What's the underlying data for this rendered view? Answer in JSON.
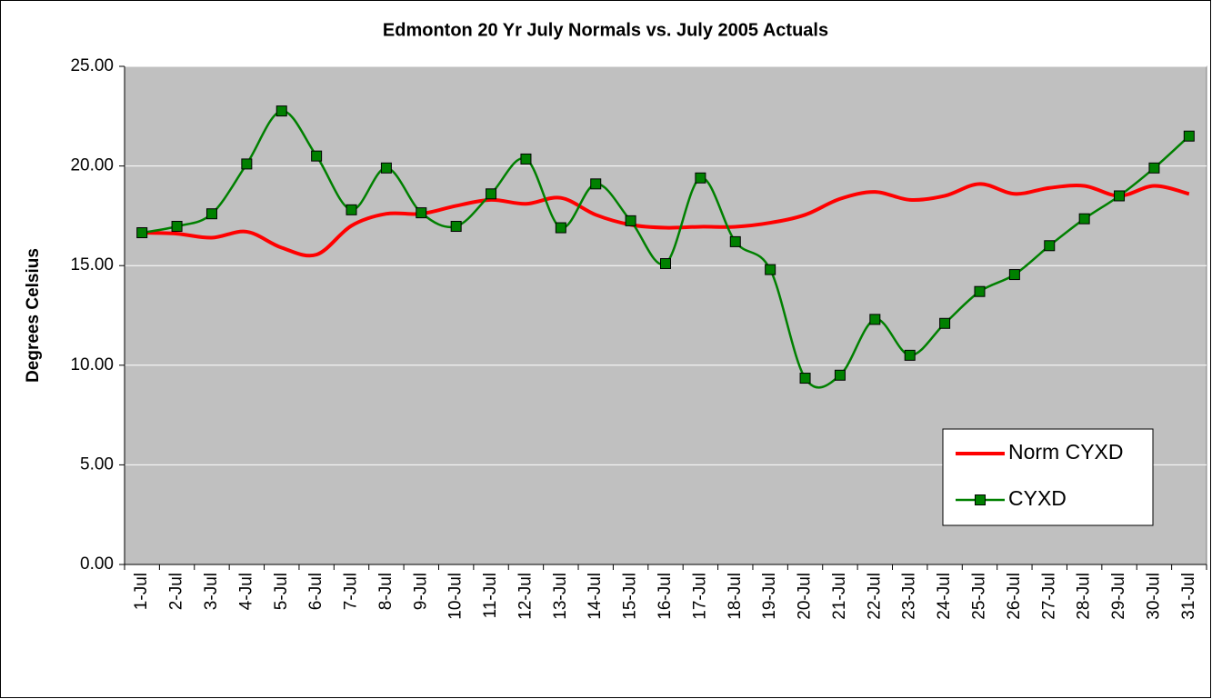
{
  "chart_data": {
    "type": "line",
    "title": "Edmonton 20 Yr July Normals vs. July 2005 Actuals",
    "y_label": "Degrees Celsius",
    "categories": [
      "1-Jul",
      "2-Jul",
      "3-Jul",
      "4-Jul",
      "5-Jul",
      "6-Jul",
      "7-Jul",
      "8-Jul",
      "9-Jul",
      "10-Jul",
      "11-Jul",
      "12-Jul",
      "13-Jul",
      "14-Jul",
      "15-Jul",
      "16-Jul",
      "17-Jul",
      "18-Jul",
      "19-Jul",
      "20-Jul",
      "21-Jul",
      "22-Jul",
      "23-Jul",
      "24-Jul",
      "25-Jul",
      "26-Jul",
      "27-Jul",
      "28-Jul",
      "29-Jul",
      "30-Jul",
      "31-Jul"
    ],
    "series": [
      {
        "name": "Norm CYXD",
        "color": "#ff0000",
        "marker": false,
        "values": [
          16.65,
          16.6,
          16.4,
          16.7,
          15.9,
          15.55,
          17.0,
          17.6,
          17.6,
          18.0,
          18.3,
          18.1,
          18.4,
          17.55,
          17.05,
          16.9,
          16.95,
          16.95,
          17.15,
          17.55,
          18.35,
          18.7,
          18.3,
          18.5,
          19.1,
          18.6,
          18.9,
          19.0,
          18.5,
          19.0,
          18.6
        ]
      },
      {
        "name": "CYXD",
        "color": "#008000",
        "marker": true,
        "values": [
          16.65,
          16.97,
          17.6,
          20.1,
          22.76,
          20.5,
          17.8,
          19.9,
          17.65,
          16.97,
          18.6,
          20.35,
          16.9,
          19.1,
          17.25,
          15.1,
          19.4,
          16.2,
          14.8,
          9.35,
          9.5,
          12.3,
          10.5,
          12.1,
          13.7,
          14.55,
          16.0,
          17.35,
          18.5,
          19.9,
          21.5
        ]
      }
    ],
    "ylim": [
      0,
      25
    ],
    "yticks": [
      {
        "value": 0,
        "label": "0.00"
      },
      {
        "value": 5,
        "label": "5.00"
      },
      {
        "value": 10,
        "label": "10.00"
      },
      {
        "value": 15,
        "label": "15.00"
      },
      {
        "value": 20,
        "label": "20.00"
      },
      {
        "value": 25,
        "label": "25.00"
      }
    ],
    "grid": true,
    "smooth": true,
    "legend": "lower right"
  }
}
